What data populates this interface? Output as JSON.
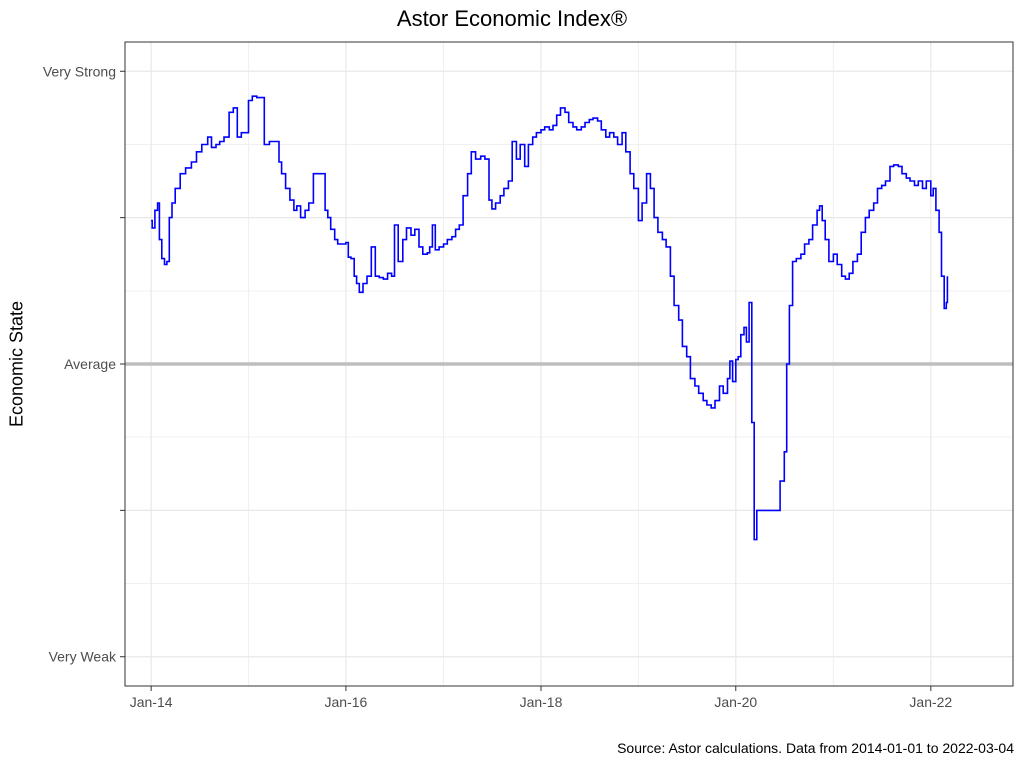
{
  "chart_data": {
    "type": "line",
    "title": "Astor Economic Index®",
    "xlabel": "",
    "ylabel": "Economic State",
    "caption": "Source: Astor calculations. Data from 2014-01-01 to 2022-03-04",
    "x_ticks": [
      {
        "label": "Jan-14",
        "value": "2014-01-01"
      },
      {
        "label": "Jan-16",
        "value": "2016-01-01"
      },
      {
        "label": "Jan-18",
        "value": "2018-01-01"
      },
      {
        "label": "Jan-20",
        "value": "2020-01-01"
      },
      {
        "label": "Jan-22",
        "value": "2022-01-01"
      }
    ],
    "y_ticks": [
      {
        "label": "Very Strong",
        "value": 2
      },
      {
        "label": "",
        "value": 1
      },
      {
        "label": "Average",
        "value": 0
      },
      {
        "label": "",
        "value": -1
      },
      {
        "label": "Very Weak",
        "value": -2
      }
    ],
    "xlim": [
      "2013-09-25",
      "2022-11-05"
    ],
    "ylim": [
      -2.2,
      2.2
    ],
    "grid": true,
    "reference_line": {
      "value": 0,
      "color": "#bebebe"
    },
    "series": [
      {
        "color": "#0000ff",
        "points": [
          [
            "2014-01-01",
            0.98
          ],
          [
            "2014-01-05",
            0.93
          ],
          [
            "2014-01-15",
            1.05
          ],
          [
            "2014-01-25",
            1.1
          ],
          [
            "2014-02-01",
            0.85
          ],
          [
            "2014-02-10",
            0.72
          ],
          [
            "2014-02-20",
            0.68
          ],
          [
            "2014-03-01",
            0.7
          ],
          [
            "2014-03-10",
            1.0
          ],
          [
            "2014-03-20",
            1.1
          ],
          [
            "2014-04-01",
            1.2
          ],
          [
            "2014-04-20",
            1.3
          ],
          [
            "2014-05-10",
            1.34
          ],
          [
            "2014-06-01",
            1.38
          ],
          [
            "2014-06-20",
            1.45
          ],
          [
            "2014-07-10",
            1.5
          ],
          [
            "2014-08-01",
            1.55
          ],
          [
            "2014-08-15",
            1.48
          ],
          [
            "2014-09-01",
            1.5
          ],
          [
            "2014-09-15",
            1.52
          ],
          [
            "2014-10-01",
            1.55
          ],
          [
            "2014-10-20",
            1.72
          ],
          [
            "2014-11-05",
            1.75
          ],
          [
            "2014-11-20",
            1.55
          ],
          [
            "2014-12-05",
            1.58
          ],
          [
            "2015-01-01",
            1.8
          ],
          [
            "2015-01-15",
            1.83
          ],
          [
            "2015-02-01",
            1.82
          ],
          [
            "2015-02-15",
            1.82
          ],
          [
            "2015-03-01",
            1.5
          ],
          [
            "2015-03-20",
            1.52
          ],
          [
            "2015-04-10",
            1.52
          ],
          [
            "2015-04-25",
            1.38
          ],
          [
            "2015-05-05",
            1.3
          ],
          [
            "2015-05-20",
            1.2
          ],
          [
            "2015-06-05",
            1.12
          ],
          [
            "2015-06-20",
            1.05
          ],
          [
            "2015-07-01",
            1.08
          ],
          [
            "2015-07-15",
            1.0
          ],
          [
            "2015-08-01",
            1.05
          ],
          [
            "2015-08-15",
            1.1
          ],
          [
            "2015-09-01",
            1.3
          ],
          [
            "2015-09-20",
            1.3
          ],
          [
            "2015-10-05",
            1.3
          ],
          [
            "2015-10-15",
            1.05
          ],
          [
            "2015-10-25",
            1.0
          ],
          [
            "2015-11-05",
            0.92
          ],
          [
            "2015-11-20",
            0.85
          ],
          [
            "2015-12-01",
            0.82
          ],
          [
            "2015-12-15",
            0.82
          ],
          [
            "2016-01-01",
            0.83
          ],
          [
            "2016-01-10",
            0.73
          ],
          [
            "2016-01-20",
            0.72
          ],
          [
            "2016-02-01",
            0.6
          ],
          [
            "2016-02-10",
            0.55
          ],
          [
            "2016-02-20",
            0.49
          ],
          [
            "2016-03-05",
            0.55
          ],
          [
            "2016-03-20",
            0.6
          ],
          [
            "2016-04-05",
            0.8
          ],
          [
            "2016-04-20",
            0.6
          ],
          [
            "2016-05-05",
            0.59
          ],
          [
            "2016-05-20",
            0.58
          ],
          [
            "2016-06-05",
            0.62
          ],
          [
            "2016-06-20",
            0.6
          ],
          [
            "2016-07-01",
            0.95
          ],
          [
            "2016-07-15",
            0.7
          ],
          [
            "2016-08-01",
            0.85
          ],
          [
            "2016-08-15",
            0.93
          ],
          [
            "2016-09-01",
            0.88
          ],
          [
            "2016-09-15",
            0.92
          ],
          [
            "2016-10-01",
            0.8
          ],
          [
            "2016-10-15",
            0.75
          ],
          [
            "2016-11-01",
            0.76
          ],
          [
            "2016-11-10",
            0.8
          ],
          [
            "2016-11-20",
            0.95
          ],
          [
            "2016-12-01",
            0.78
          ],
          [
            "2016-12-15",
            0.8
          ],
          [
            "2017-01-01",
            0.82
          ],
          [
            "2017-01-15",
            0.85
          ],
          [
            "2017-02-01",
            0.87
          ],
          [
            "2017-02-15",
            0.92
          ],
          [
            "2017-03-01",
            0.95
          ],
          [
            "2017-03-15",
            1.15
          ],
          [
            "2017-04-01",
            1.3
          ],
          [
            "2017-04-15",
            1.45
          ],
          [
            "2017-05-01",
            1.4
          ],
          [
            "2017-05-20",
            1.42
          ],
          [
            "2017-06-05",
            1.4
          ],
          [
            "2017-06-20",
            1.12
          ],
          [
            "2017-07-01",
            1.06
          ],
          [
            "2017-07-15",
            1.1
          ],
          [
            "2017-08-01",
            1.15
          ],
          [
            "2017-08-15",
            1.2
          ],
          [
            "2017-09-01",
            1.25
          ],
          [
            "2017-09-15",
            1.52
          ],
          [
            "2017-10-01",
            1.4
          ],
          [
            "2017-10-15",
            1.5
          ],
          [
            "2017-11-01",
            1.35
          ],
          [
            "2017-11-15",
            1.5
          ],
          [
            "2017-12-01",
            1.55
          ],
          [
            "2017-12-15",
            1.58
          ],
          [
            "2018-01-01",
            1.6
          ],
          [
            "2018-01-15",
            1.62
          ],
          [
            "2018-02-01",
            1.6
          ],
          [
            "2018-02-15",
            1.63
          ],
          [
            "2018-03-01",
            1.7
          ],
          [
            "2018-03-15",
            1.75
          ],
          [
            "2018-04-01",
            1.72
          ],
          [
            "2018-04-15",
            1.65
          ],
          [
            "2018-05-01",
            1.62
          ],
          [
            "2018-05-15",
            1.6
          ],
          [
            "2018-06-01",
            1.62
          ],
          [
            "2018-06-15",
            1.65
          ],
          [
            "2018-07-01",
            1.67
          ],
          [
            "2018-07-15",
            1.68
          ],
          [
            "2018-08-01",
            1.66
          ],
          [
            "2018-08-15",
            1.6
          ],
          [
            "2018-09-01",
            1.55
          ],
          [
            "2018-09-15",
            1.58
          ],
          [
            "2018-10-01",
            1.55
          ],
          [
            "2018-10-15",
            1.5
          ],
          [
            "2018-11-01",
            1.58
          ],
          [
            "2018-11-15",
            1.45
          ],
          [
            "2018-12-01",
            1.3
          ],
          [
            "2018-12-15",
            1.2
          ],
          [
            "2019-01-01",
            0.98
          ],
          [
            "2019-01-15",
            1.1
          ],
          [
            "2019-02-01",
            1.3
          ],
          [
            "2019-02-15",
            1.2
          ],
          [
            "2019-03-01",
            1.0
          ],
          [
            "2019-03-15",
            0.9
          ],
          [
            "2019-04-01",
            0.85
          ],
          [
            "2019-04-15",
            0.8
          ],
          [
            "2019-05-01",
            0.6
          ],
          [
            "2019-05-15",
            0.4
          ],
          [
            "2019-06-01",
            0.3
          ],
          [
            "2019-06-15",
            0.12
          ],
          [
            "2019-07-01",
            0.05
          ],
          [
            "2019-07-15",
            -0.1
          ],
          [
            "2019-08-01",
            -0.15
          ],
          [
            "2019-08-15",
            -0.2
          ],
          [
            "2019-09-01",
            -0.25
          ],
          [
            "2019-09-15",
            -0.28
          ],
          [
            "2019-10-01",
            -0.3
          ],
          [
            "2019-10-15",
            -0.25
          ],
          [
            "2019-11-01",
            -0.15
          ],
          [
            "2019-11-15",
            -0.2
          ],
          [
            "2019-12-01",
            -0.1
          ],
          [
            "2019-12-10",
            0.02
          ],
          [
            "2019-12-20",
            -0.12
          ],
          [
            "2020-01-01",
            0.03
          ],
          [
            "2020-01-10",
            0.05
          ],
          [
            "2020-01-20",
            0.2
          ],
          [
            "2020-02-01",
            0.25
          ],
          [
            "2020-02-10",
            0.15
          ],
          [
            "2020-02-20",
            0.42
          ],
          [
            "2020-03-01",
            -0.4
          ],
          [
            "2020-03-10",
            -1.2
          ],
          [
            "2020-03-20",
            -1.0
          ],
          [
            "2020-04-01",
            -1.0
          ],
          [
            "2020-04-15",
            -1.0
          ],
          [
            "2020-05-01",
            -1.0
          ],
          [
            "2020-05-15",
            -1.0
          ],
          [
            "2020-06-01",
            -1.0
          ],
          [
            "2020-06-15",
            -0.8
          ],
          [
            "2020-07-01",
            -0.6
          ],
          [
            "2020-07-10",
            0.0
          ],
          [
            "2020-07-20",
            0.4
          ],
          [
            "2020-08-01",
            0.7
          ],
          [
            "2020-08-15",
            0.72
          ],
          [
            "2020-09-01",
            0.75
          ],
          [
            "2020-09-15",
            0.82
          ],
          [
            "2020-10-01",
            0.85
          ],
          [
            "2020-10-15",
            0.95
          ],
          [
            "2020-11-01",
            1.05
          ],
          [
            "2020-11-10",
            1.08
          ],
          [
            "2020-11-20",
            0.98
          ],
          [
            "2020-12-01",
            0.85
          ],
          [
            "2020-12-15",
            0.7
          ],
          [
            "2021-01-01",
            0.75
          ],
          [
            "2021-01-15",
            0.68
          ],
          [
            "2021-02-01",
            0.6
          ],
          [
            "2021-02-15",
            0.58
          ],
          [
            "2021-03-01",
            0.62
          ],
          [
            "2021-03-15",
            0.7
          ],
          [
            "2021-04-01",
            0.75
          ],
          [
            "2021-04-15",
            0.9
          ],
          [
            "2021-05-01",
            1.0
          ],
          [
            "2021-05-15",
            1.05
          ],
          [
            "2021-06-01",
            1.1
          ],
          [
            "2021-06-15",
            1.2
          ],
          [
            "2021-07-01",
            1.22
          ],
          [
            "2021-07-15",
            1.25
          ],
          [
            "2021-08-01",
            1.35
          ],
          [
            "2021-08-15",
            1.36
          ],
          [
            "2021-09-01",
            1.35
          ],
          [
            "2021-09-15",
            1.3
          ],
          [
            "2021-10-01",
            1.27
          ],
          [
            "2021-10-15",
            1.25
          ],
          [
            "2021-11-01",
            1.22
          ],
          [
            "2021-11-15",
            1.25
          ],
          [
            "2021-12-01",
            1.2
          ],
          [
            "2021-12-15",
            1.25
          ],
          [
            "2022-01-01",
            1.15
          ],
          [
            "2022-01-10",
            1.2
          ],
          [
            "2022-01-20",
            1.05
          ],
          [
            "2022-02-01",
            0.9
          ],
          [
            "2022-02-10",
            0.6
          ],
          [
            "2022-02-20",
            0.38
          ],
          [
            "2022-02-28",
            0.42
          ],
          [
            "2022-03-04",
            0.6
          ]
        ]
      }
    ]
  }
}
